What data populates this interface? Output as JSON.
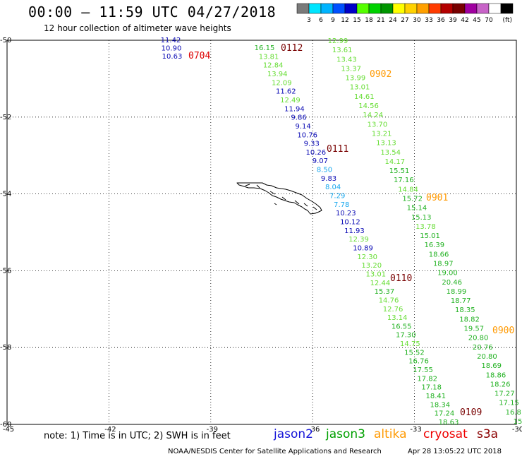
{
  "header": {
    "title": "00:00 – 11:59 UTC 04/27/2018",
    "subtitle": "12 hour collection of altimeter wave heights"
  },
  "colorbar": {
    "colors": [
      "#7a7a7a",
      "#00e5ff",
      "#00b4ff",
      "#0050ff",
      "#0000c8",
      "#55ff00",
      "#00d200",
      "#009600",
      "#ffff00",
      "#ffd200",
      "#ffa000",
      "#ff3c00",
      "#b40000",
      "#780000",
      "#a000a0",
      "#c864c8",
      "#ffffff",
      "#000000"
    ],
    "labels": [
      "3",
      "6",
      "9",
      "12",
      "15",
      "18",
      "21",
      "24",
      "27",
      "30",
      "33",
      "36",
      "39",
      "42",
      "45",
      "70"
    ],
    "unit": "(ft)"
  },
  "axes": {
    "lat_ticks": [
      "-50",
      "-52",
      "-54",
      "-56",
      "-58",
      "-60"
    ],
    "lon_ticks": [
      "-45",
      "-42",
      "-39",
      "-36",
      "-33",
      "-30"
    ]
  },
  "chart_data": {
    "type": "map",
    "lon_range": [
      -45,
      -30
    ],
    "lat_range": [
      -60,
      -50
    ],
    "grid": "dotted",
    "passes": [
      {
        "label": "0704",
        "satellite": "cryosat",
        "color": "#dd0000",
        "values": [
          "11.42",
          "10.90",
          "10.63"
        ]
      },
      {
        "label": "0112",
        "satellite": "s3a",
        "color": "#780000",
        "values": [
          "16.15",
          "13.81",
          "12.84",
          "13.94",
          "12.09",
          "11.62",
          "12.49",
          "11.94",
          "9.86",
          "9.14",
          "10.76",
          "9.33",
          "10.26",
          "9.07",
          "8.50",
          "9.83",
          "8.04",
          "7.29",
          "7.78",
          "10.23",
          "10.12",
          "11.93",
          "12.39",
          "10.89",
          "12.30",
          "13.20",
          "13.01",
          "12.44",
          "15.37",
          "14.76",
          "12.76",
          "13.14",
          "16.55",
          "17.30",
          "14.75",
          "15.52",
          "16.76",
          "17.55",
          "17.82",
          "17.18",
          "18.41",
          "18.34",
          "17.24",
          "18.63"
        ]
      },
      {
        "label": "0111",
        "satellite": "s3a",
        "color": "#780000",
        "values": []
      },
      {
        "label": "0110",
        "satellite": "s3a",
        "color": "#780000",
        "values": []
      },
      {
        "label": "0109",
        "satellite": "s3a",
        "color": "#780000",
        "values": []
      },
      {
        "label": "0902",
        "satellite": "altika",
        "color": "#ff9900",
        "values": [
          "12.99",
          "13.61",
          "13.43",
          "13.37",
          "13.99",
          "13.01",
          "14.61",
          "14.56",
          "14.24",
          "13.70",
          "13.21",
          "13.13",
          "13.54",
          "14.17",
          "15.51",
          "17.16",
          "14.84",
          "15.72",
          "15.14",
          "15.13",
          "13.78",
          "15.01",
          "16.39",
          "18.66",
          "18.97",
          "19.00",
          "20.46",
          "18.99",
          "18.77",
          "18.35",
          "18.82",
          "19.57",
          "20.80",
          "20.76",
          "20.80",
          "18.69",
          "18.86",
          "18.26",
          "17.27",
          "17.15",
          "16.8",
          "15"
        ]
      },
      {
        "label": "0901",
        "satellite": "altika",
        "color": "#ff9900",
        "values": []
      },
      {
        "label": "0900",
        "satellite": "altika",
        "color": "#ff9900",
        "values": []
      }
    ]
  },
  "footer": {
    "note": "note: 1) Time is in UTC; 2) SWH is in feet",
    "satellites": [
      {
        "name": "jason2",
        "color": "#1515d8"
      },
      {
        "name": "jason3",
        "color": "#00a000"
      },
      {
        "name": "altika",
        "color": "#ff9900"
      },
      {
        "name": "cryosat",
        "color": "#ee0000"
      },
      {
        "name": "s3a",
        "color": "#8b0000"
      }
    ],
    "credit": "NOAA/NESDIS Center for Satellite Applications and Research",
    "timestamp": "Apr 28 13:05:22 UTC 2018"
  }
}
